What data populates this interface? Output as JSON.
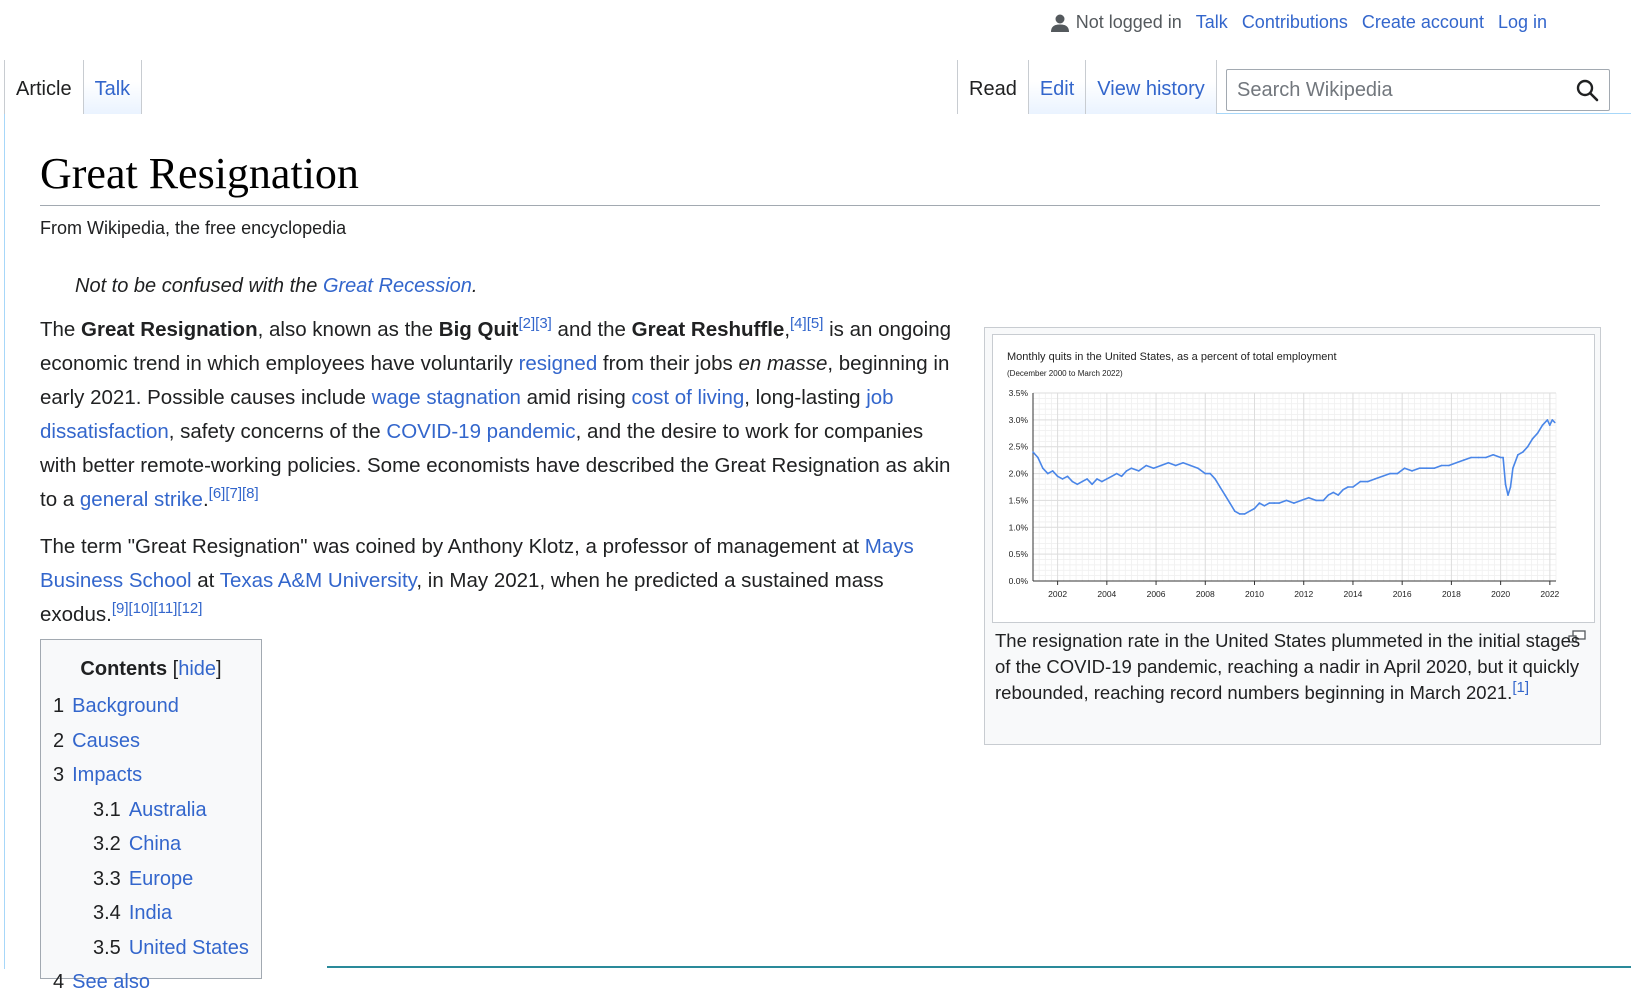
{
  "personal": {
    "not_logged_in": "Not logged in",
    "talk": "Talk",
    "contributions": "Contributions",
    "create_account": "Create account",
    "login": "Log in"
  },
  "tabs": {
    "left": [
      "Article",
      "Talk"
    ],
    "right": [
      "Read",
      "Edit",
      "View history"
    ]
  },
  "search": {
    "placeholder": "Search Wikipedia"
  },
  "page": {
    "title": "Great Resignation",
    "tagline": "From Wikipedia, the free encyclopedia",
    "hatnote_pre": "Not to be confused with the ",
    "hatnote_link": "Great Recession",
    "hatnote_post": "."
  },
  "intro": {
    "p1": [
      {
        "t": "The "
      },
      {
        "t": "Great Resignation",
        "b": true
      },
      {
        "t": ", also known as the "
      },
      {
        "t": "Big Quit",
        "b": true
      },
      {
        "t": "[2][3]",
        "sup": true
      },
      {
        "t": " and the "
      },
      {
        "t": "Great Reshuffle",
        "b": true
      },
      {
        "t": ","
      },
      {
        "t": "[4][5]",
        "sup": true
      },
      {
        "t": " is an ongoing economic trend in which employees have voluntarily "
      },
      {
        "t": "resigned",
        "link": true
      },
      {
        "t": " from their jobs "
      },
      {
        "t": "en masse",
        "i": true
      },
      {
        "t": ", beginning in early 2021. Possible causes include "
      },
      {
        "t": "wage stagnation",
        "link": true
      },
      {
        "t": " amid rising "
      },
      {
        "t": "cost of living",
        "link": true
      },
      {
        "t": ", long-lasting "
      },
      {
        "t": "job dissatisfaction",
        "link": true
      },
      {
        "t": ", safety concerns of the "
      },
      {
        "t": "COVID-19 pandemic",
        "link": true
      },
      {
        "t": ", and the desire to work for companies with better remote-working policies. Some economists have described the Great Resignation as akin to a "
      },
      {
        "t": "general strike",
        "link": true
      },
      {
        "t": "."
      },
      {
        "t": "[6][7][8]",
        "sup": true
      }
    ],
    "p2": [
      {
        "t": "The term \"Great Resignation\" was coined by Anthony Klotz, a professor of management at "
      },
      {
        "t": "Mays Business School",
        "link": true
      },
      {
        "t": " at "
      },
      {
        "t": "Texas A&M University",
        "link": true
      },
      {
        "t": ", in May 2021, when he predicted a sustained mass exodus."
      },
      {
        "t": "[9][10][11][12]",
        "sup": true
      }
    ]
  },
  "toc": {
    "title": "Contents",
    "toggle_open": "[",
    "toggle": "hide",
    "toggle_close": "]",
    "items": [
      {
        "num": "1",
        "label": "Background",
        "level": 1
      },
      {
        "num": "2",
        "label": "Causes",
        "level": 1
      },
      {
        "num": "3",
        "label": "Impacts",
        "level": 1
      },
      {
        "num": "3.1",
        "label": "Australia",
        "level": 2
      },
      {
        "num": "3.2",
        "label": "China",
        "level": 2
      },
      {
        "num": "3.3",
        "label": "Europe",
        "level": 2
      },
      {
        "num": "3.4",
        "label": "India",
        "level": 2
      },
      {
        "num": "3.5",
        "label": "United States",
        "level": 2
      },
      {
        "num": "4",
        "label": "See also",
        "level": 1
      }
    ]
  },
  "figure": {
    "caption": "The resignation rate in the United States plummeted in the initial stages of the COVID-19 pandemic, reaching a nadir in April 2020, but it quickly rebounded, reaching record numbers beginning in March 2021.",
    "caption_ref": "[1]"
  },
  "chart_data": {
    "type": "line",
    "title": "Monthly quits in the United States, as a percent of total employment",
    "subtitle": "(December 2000 to March 2022)",
    "xlabel": "",
    "ylabel": "",
    "xlim": [
      2001.0,
      2022.25
    ],
    "ylim": [
      0,
      3.5
    ],
    "xticks": [
      "2002",
      "2004",
      "2006",
      "2008",
      "2010",
      "2012",
      "2014",
      "2016",
      "2018",
      "2020",
      "2022"
    ],
    "yticks": [
      "0.0%",
      "0.5%",
      "1.0%",
      "1.5%",
      "2.0%",
      "2.5%",
      "3.0%",
      "3.5%"
    ],
    "grid": true,
    "color": "#4a86e8",
    "series": [
      {
        "x": [
          2001.0,
          2001.2,
          2001.4,
          2001.6,
          2001.8,
          2002.0,
          2002.2,
          2002.4,
          2002.6,
          2002.8,
          2003.0,
          2003.2,
          2003.4,
          2003.6,
          2003.8,
          2004.0,
          2004.2,
          2004.4,
          2004.6,
          2004.8,
          2005.0,
          2005.3,
          2005.6,
          2005.9,
          2006.2,
          2006.5,
          2006.8,
          2007.1,
          2007.4,
          2007.7,
          2008.0,
          2008.2,
          2008.4,
          2008.6,
          2008.8,
          2009.0,
          2009.2,
          2009.4,
          2009.6,
          2009.8,
          2010.0,
          2010.2,
          2010.4,
          2010.6,
          2010.8,
          2011.0,
          2011.3,
          2011.6,
          2011.9,
          2012.2,
          2012.5,
          2012.8,
          2013.0,
          2013.2,
          2013.4,
          2013.6,
          2013.8,
          2014.0,
          2014.3,
          2014.6,
          2014.9,
          2015.2,
          2015.5,
          2015.8,
          2016.1,
          2016.4,
          2016.7,
          2017.0,
          2017.3,
          2017.6,
          2017.9,
          2018.2,
          2018.5,
          2018.8,
          2019.1,
          2019.4,
          2019.7,
          2020.0,
          2020.1,
          2020.2,
          2020.3,
          2020.4,
          2020.5,
          2020.7,
          2020.9,
          2021.1,
          2021.3,
          2021.5,
          2021.7,
          2021.9,
          2022.0,
          2022.1,
          2022.2
        ],
        "y": [
          2.4,
          2.3,
          2.1,
          2.0,
          2.05,
          1.95,
          1.9,
          1.95,
          1.85,
          1.8,
          1.85,
          1.9,
          1.8,
          1.9,
          1.85,
          1.9,
          1.95,
          2.0,
          1.95,
          2.05,
          2.1,
          2.05,
          2.15,
          2.1,
          2.15,
          2.2,
          2.15,
          2.2,
          2.15,
          2.1,
          2.0,
          2.0,
          1.9,
          1.75,
          1.6,
          1.45,
          1.3,
          1.25,
          1.25,
          1.3,
          1.35,
          1.45,
          1.4,
          1.45,
          1.45,
          1.45,
          1.5,
          1.45,
          1.5,
          1.55,
          1.5,
          1.5,
          1.6,
          1.65,
          1.6,
          1.7,
          1.75,
          1.75,
          1.85,
          1.85,
          1.9,
          1.95,
          2.0,
          2.0,
          2.1,
          2.05,
          2.1,
          2.1,
          2.1,
          2.15,
          2.15,
          2.2,
          2.25,
          2.3,
          2.3,
          2.3,
          2.35,
          2.3,
          2.3,
          1.8,
          1.6,
          1.75,
          2.1,
          2.35,
          2.4,
          2.5,
          2.65,
          2.75,
          2.9,
          3.0,
          2.9,
          3.0,
          2.95
        ]
      }
    ]
  }
}
